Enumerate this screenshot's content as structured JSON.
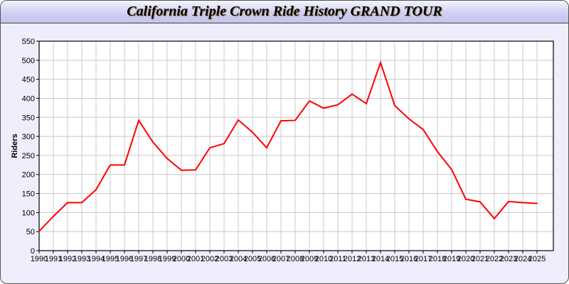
{
  "chart_data": {
    "type": "line",
    "title": "California Triple Crown Ride History GRAND TOUR",
    "xlabel": "",
    "ylabel": "Riders",
    "ylim": [
      0,
      550
    ],
    "yticks": [
      0,
      50,
      100,
      150,
      200,
      250,
      300,
      350,
      400,
      450,
      500,
      550
    ],
    "grid": true,
    "line_color": "#ff0000",
    "x": [
      "1990",
      "1991",
      "1992",
      "1993",
      "1994",
      "1995",
      "1996",
      "1997",
      "1998",
      "1999",
      "2000",
      "2001",
      "2002",
      "2003",
      "2004",
      "2005",
      "2006",
      "2007",
      "2008",
      "2009",
      "2010",
      "2011",
      "2012",
      "2013",
      "2014",
      "2015",
      "2016",
      "2017",
      "2018",
      "2019",
      "2020",
      "2021",
      "2022",
      "2023",
      "2024",
      "2025"
    ],
    "values": [
      51,
      90,
      126,
      126,
      160,
      225,
      225,
      342,
      285,
      242,
      211,
      212,
      270,
      281,
      343,
      311,
      270,
      341,
      342,
      393,
      374,
      383,
      411,
      386,
      494,
      381,
      346,
      318,
      260,
      213,
      135,
      128,
      84,
      129,
      126,
      124
    ]
  }
}
